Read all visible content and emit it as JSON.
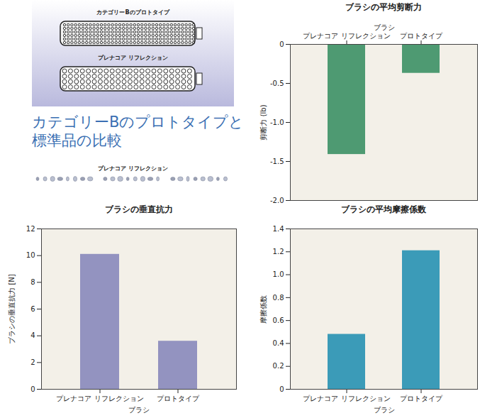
{
  "illustration": {
    "labels": [
      "カテゴリーBのプロトタイプ",
      "プレナコア リフレクション"
    ]
  },
  "heading": "カテゴリーBのプロトタイプと標準品の比較",
  "strip_label": "プレナコア リフレクション",
  "chart_data": [
    {
      "type": "bar",
      "title": "ブラシの平均剪断力",
      "x_label": "ブラシ",
      "y_label": "剪断力 (lb)",
      "categories": [
        "プレナコア リフレクション",
        "プロトタイプ"
      ],
      "values": [
        -1.41,
        -0.37
      ],
      "color": "#4e9a72",
      "ylim": [
        -2,
        0
      ],
      "yticks": [
        {
          "value": -2,
          "label": "-2.0"
        },
        {
          "value": -1.5,
          "label": "-1.5"
        },
        {
          "value": -1,
          "label": "-1.0"
        },
        -0.5,
        0
      ]
    },
    {
      "type": "bar",
      "title": "ブラシの垂直抗力",
      "x_label": "ブラシ",
      "y_label": "ブラシの垂直抗力 [N]",
      "categories": [
        "プレナコア リフレクション",
        "プロトタイプ"
      ],
      "values": [
        10.1,
        3.6
      ],
      "color": "#9393c0",
      "ylim": [
        0,
        12
      ],
      "yticks": [
        0,
        2,
        4,
        6,
        8,
        10,
        12
      ]
    },
    {
      "type": "bar",
      "title": "ブラシの平均摩擦係数",
      "x_label": "ブラシ",
      "y_label": "摩擦係数",
      "categories": [
        "プレナコア リフレクション",
        "プロトタイプ"
      ],
      "values": [
        0.48,
        1.21
      ],
      "color": "#3b9bb8",
      "ylim": [
        0,
        1.4
      ],
      "yticks": [
        0,
        0.2,
        0.4,
        0.6,
        0.8,
        {
          "value": 1,
          "label": "1.0"
        },
        1.2,
        1.4
      ]
    }
  ]
}
